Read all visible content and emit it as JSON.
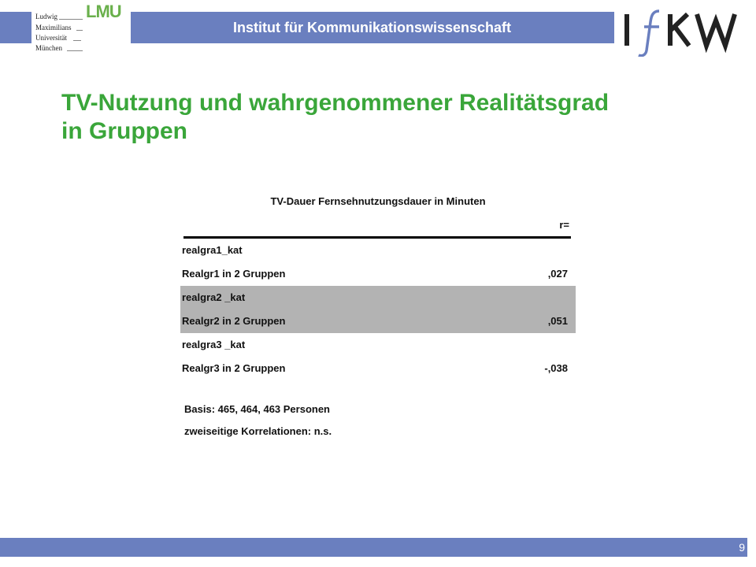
{
  "header": {
    "university_lines": [
      "Ludwig",
      "Maximilians",
      "Universität",
      "München"
    ],
    "university_mark": "LMU",
    "institute": "Institut für Kommunikationswissenschaft",
    "logo_text": "IfKW"
  },
  "slide": {
    "title_line1": "TV-Nutzung und wahrgenommener Realitätsgrad",
    "title_line2": "in Gruppen"
  },
  "table": {
    "heading": "TV-Dauer Fernsehnutzungsdauer in Minuten",
    "column_label": "r=",
    "rows": [
      {
        "label": "realgra1_kat",
        "value": ""
      },
      {
        "label": "Realgr1 in 2 Gruppen",
        "value": ",027"
      },
      {
        "label": "realgra2 _kat",
        "value": ""
      },
      {
        "label": "Realgr2 in 2 Gruppen",
        "value": ",051"
      },
      {
        "label": "realgra3 _kat",
        "value": ""
      },
      {
        "label": "Realgr3 in 2 Gruppen",
        "value": "-,038"
      }
    ]
  },
  "notes": {
    "basis": "Basis: 465, 464, 463 Personen",
    "significance": "zweiseitige Korrelationen: n.s."
  },
  "footer": {
    "page_number": "9"
  },
  "colors": {
    "header_blue": "#6a7fbf",
    "title_green": "#3aa63a",
    "row_shade": "#b3b3b3"
  }
}
